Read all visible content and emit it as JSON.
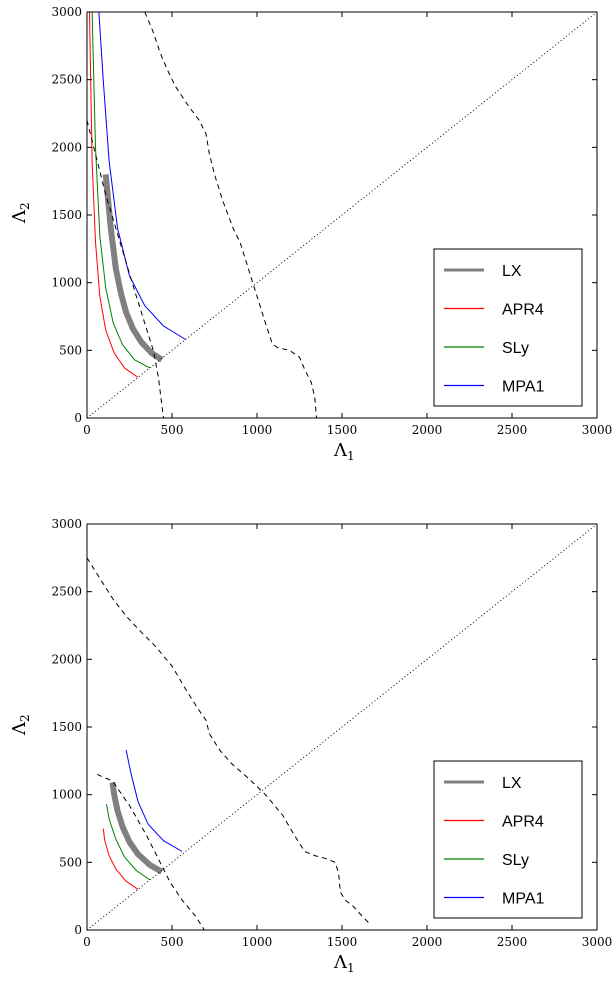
{
  "chart_data": [
    {
      "type": "line",
      "title": "",
      "xlabel": "Λ",
      "xlabel_sub": "1",
      "ylabel": "Λ",
      "ylabel_sub": "2",
      "xlim": [
        0,
        3000
      ],
      "ylim": [
        0,
        3000
      ],
      "xticks": [
        0,
        500,
        1000,
        1500,
        2000,
        2500,
        3000
      ],
      "yticks": [
        0,
        500,
        1000,
        1500,
        2000,
        2500,
        3000
      ],
      "grid": false,
      "legend_position": "lower-right",
      "series": [
        {
          "name": "LX",
          "color": "#808080",
          "style": "thick",
          "x": [
            440,
            380,
            320,
            270,
            230,
            200,
            170,
            140,
            110
          ],
          "y": [
            430,
            480,
            560,
            660,
            780,
            920,
            1100,
            1400,
            1800
          ]
        },
        {
          "name": "APR4",
          "color": "#ff0000",
          "style": "solid",
          "x": [
            300,
            220,
            160,
            110,
            75,
            50,
            30,
            15
          ],
          "y": [
            300,
            370,
            480,
            650,
            900,
            1300,
            1900,
            3000
          ]
        },
        {
          "name": "SLy",
          "color": "#008000",
          "style": "solid",
          "x": [
            370,
            280,
            210,
            155,
            110,
            75,
            50,
            30
          ],
          "y": [
            370,
            430,
            540,
            700,
            960,
            1350,
            2000,
            3000
          ]
        },
        {
          "name": "MPA1",
          "color": "#0000ff",
          "style": "solid",
          "x": [
            580,
            450,
            340,
            250,
            180,
            130,
            95,
            70
          ],
          "y": [
            580,
            680,
            830,
            1050,
            1400,
            1900,
            2500,
            3000
          ]
        },
        {
          "name": "",
          "color": "#000000",
          "style": "dashed",
          "x": [
            0,
            20,
            60,
            110,
            170,
            230,
            290,
            340,
            390,
            420,
            450
          ],
          "y": [
            2200,
            2100,
            1900,
            1650,
            1400,
            1150,
            900,
            700,
            500,
            300,
            0
          ]
        },
        {
          "name": "",
          "color": "#000000",
          "style": "dashed",
          "x": [
            340,
            390,
            430,
            470,
            520,
            600,
            660,
            700,
            720,
            750,
            800,
            860,
            900,
            950,
            1000,
            1050,
            1090,
            1120,
            1190,
            1250,
            1280,
            1320,
            1340,
            1350
          ],
          "y": [
            3000,
            2850,
            2700,
            2580,
            2450,
            2300,
            2200,
            2100,
            1950,
            1800,
            1600,
            1400,
            1300,
            1100,
            900,
            700,
            550,
            520,
            500,
            450,
            360,
            260,
            150,
            0
          ]
        },
        {
          "name": "",
          "color": "#000000",
          "style": "dotted",
          "x": [
            0,
            3000
          ],
          "y": [
            0,
            3000
          ]
        }
      ]
    },
    {
      "type": "line",
      "title": "",
      "xlabel": "Λ",
      "xlabel_sub": "1",
      "ylabel": "Λ",
      "ylabel_sub": "2",
      "xlim": [
        0,
        3000
      ],
      "ylim": [
        0,
        3000
      ],
      "xticks": [
        0,
        500,
        1000,
        1500,
        2000,
        2500,
        3000
      ],
      "yticks": [
        0,
        500,
        1000,
        1500,
        2000,
        2500,
        3000
      ],
      "grid": false,
      "legend_position": "lower-right",
      "series": [
        {
          "name": "LX",
          "color": "#808080",
          "style": "thick",
          "x": [
            440,
            370,
            300,
            250,
            210,
            180,
            160,
            150
          ],
          "y": [
            430,
            480,
            560,
            650,
            760,
            880,
            1000,
            1090
          ]
        },
        {
          "name": "APR4",
          "color": "#ff0000",
          "style": "solid",
          "x": [
            300,
            230,
            170,
            130,
            105,
            95
          ],
          "y": [
            300,
            360,
            450,
            550,
            660,
            750
          ]
        },
        {
          "name": "SLy",
          "color": "#008000",
          "style": "solid",
          "x": [
            370,
            290,
            220,
            170,
            130,
            115
          ],
          "y": [
            370,
            440,
            540,
            670,
            820,
            930
          ]
        },
        {
          "name": "MPA1",
          "color": "#0000ff",
          "style": "solid",
          "x": [
            560,
            450,
            360,
            300,
            260,
            230
          ],
          "y": [
            580,
            660,
            780,
            950,
            1150,
            1330
          ]
        },
        {
          "name": "",
          "color": "#000000",
          "style": "dashed",
          "x": [
            60,
            150,
            250,
            350,
            430,
            490,
            560,
            640,
            690
          ],
          "y": [
            1150,
            1100,
            920,
            700,
            500,
            350,
            220,
            100,
            0
          ]
        },
        {
          "name": "",
          "color": "#000000",
          "style": "dashed",
          "x": [
            0,
            50,
            100,
            150,
            230,
            320,
            400,
            500,
            580,
            650,
            700,
            720,
            780,
            850,
            950,
            1050,
            1150,
            1220,
            1280,
            1340,
            1400,
            1460,
            1480,
            1490,
            1520,
            1570,
            1620,
            1660
          ],
          "y": [
            2750,
            2650,
            2550,
            2450,
            2320,
            2200,
            2100,
            1950,
            1780,
            1640,
            1550,
            1450,
            1330,
            1230,
            1120,
            1000,
            850,
            700,
            580,
            550,
            530,
            500,
            420,
            280,
            220,
            170,
            100,
            50
          ]
        },
        {
          "name": "",
          "color": "#000000",
          "style": "dotted",
          "x": [
            0,
            3000
          ],
          "y": [
            0,
            3000
          ]
        }
      ]
    }
  ]
}
